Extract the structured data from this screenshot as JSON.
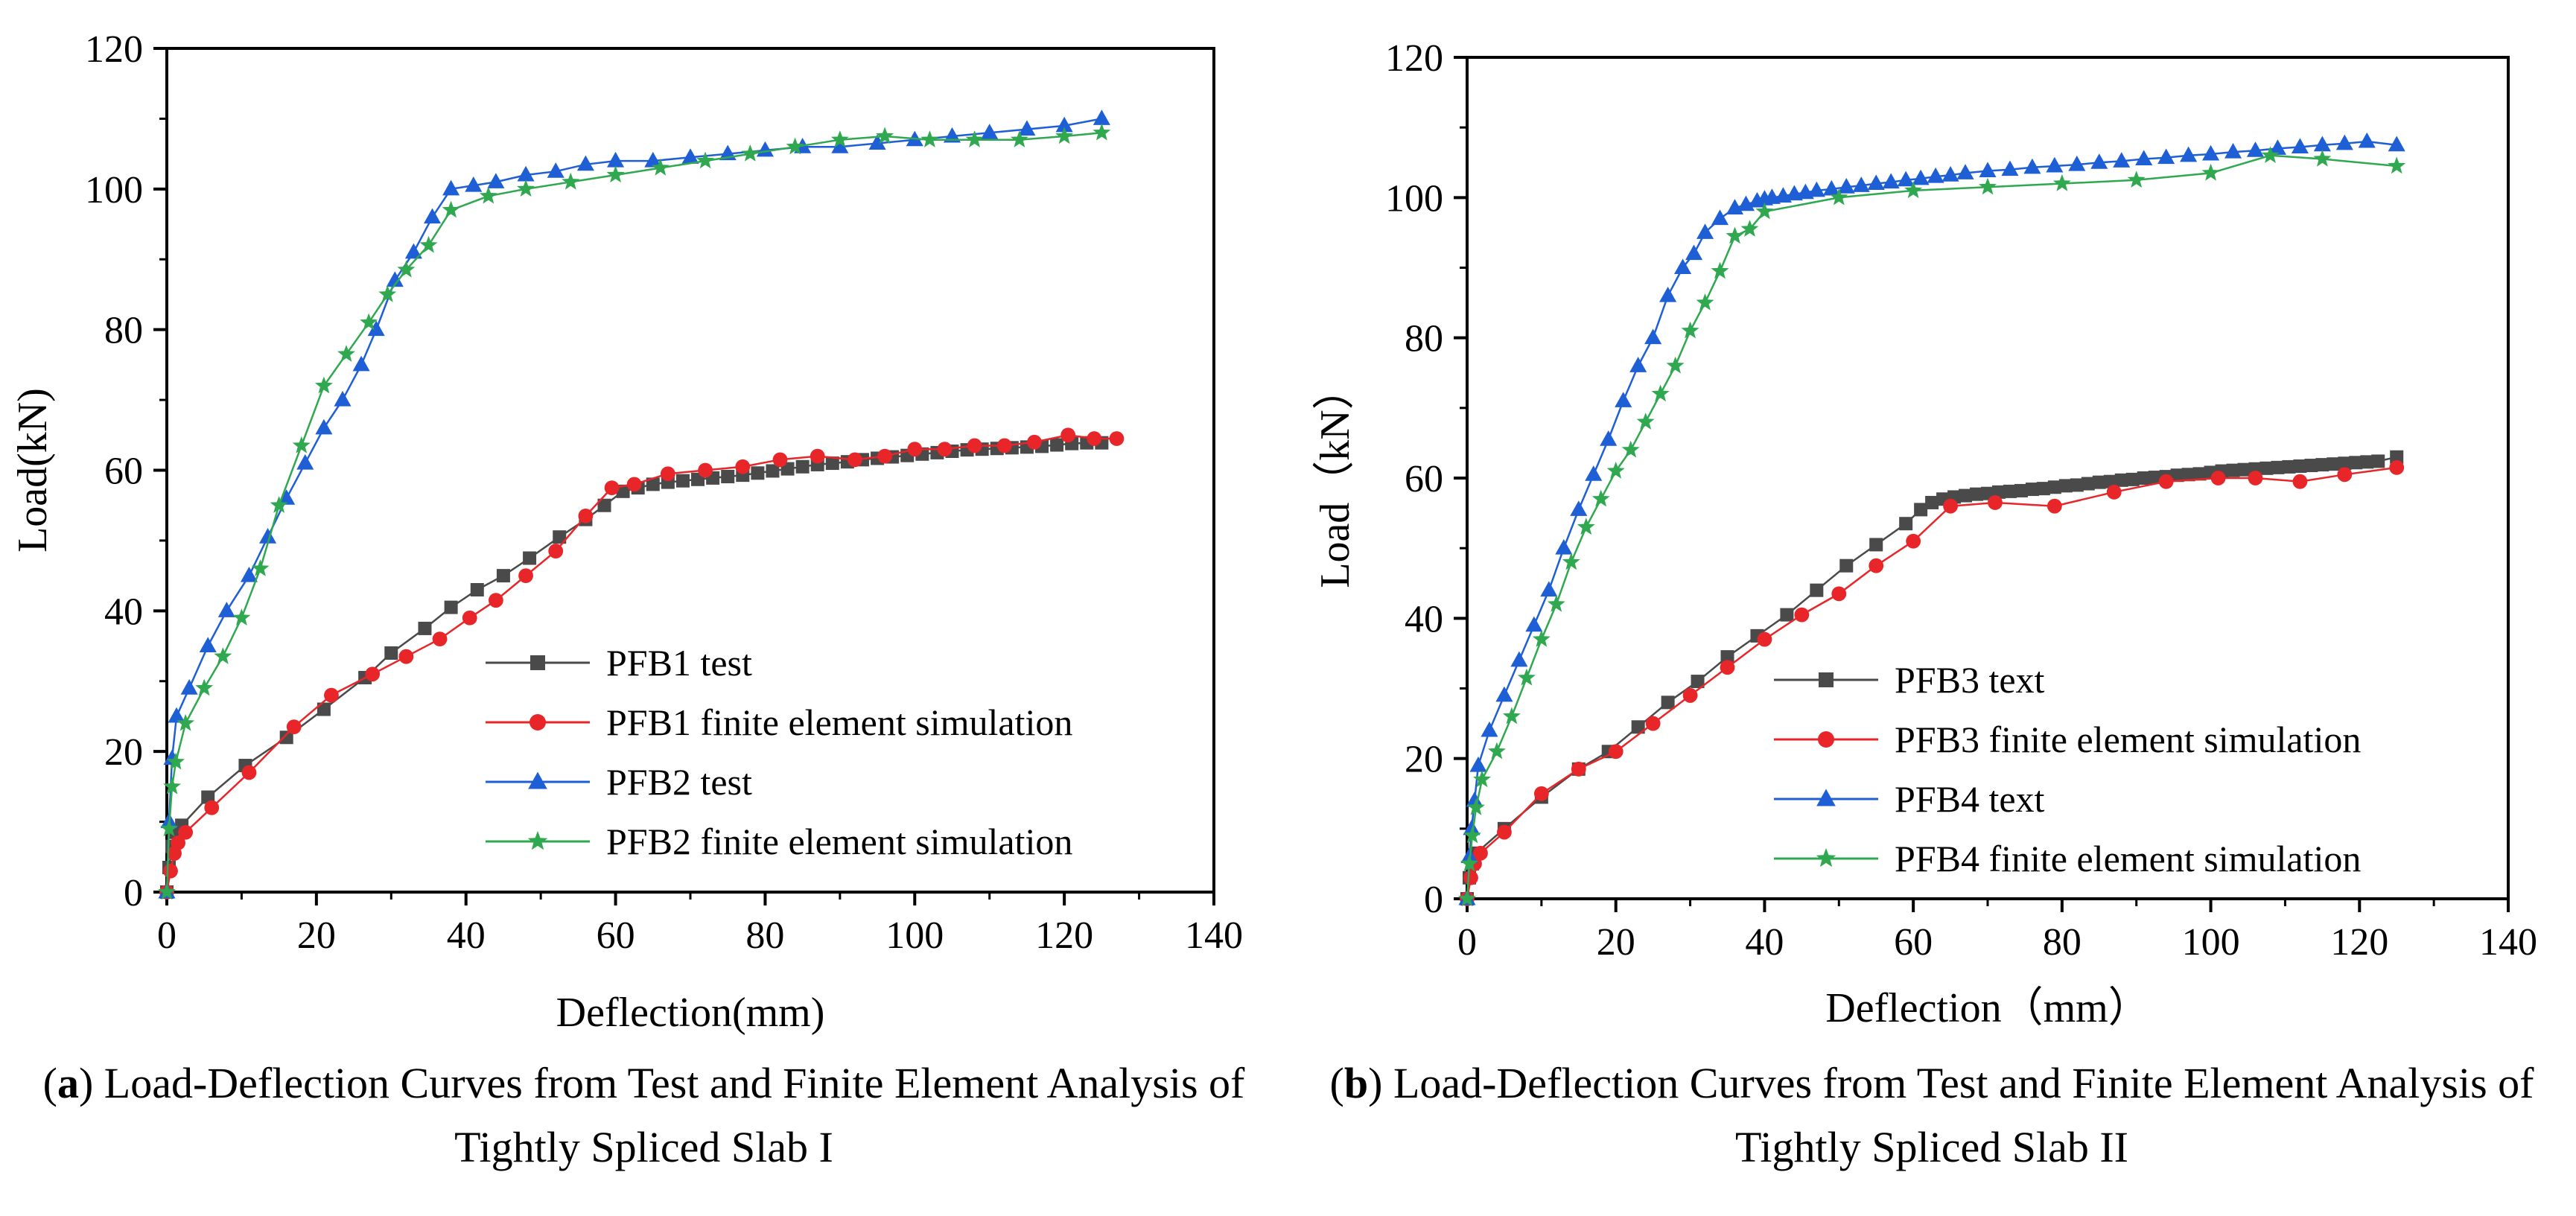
{
  "chart_data": [
    {
      "type": "line",
      "xlabel": "Deflection(mm)",
      "ylabel": "Load(kN)",
      "xlim": [
        0,
        140
      ],
      "ylim": [
        0,
        120
      ],
      "xticks": [
        0,
        20,
        40,
        60,
        80,
        100,
        120,
        140
      ],
      "yticks": [
        0,
        20,
        40,
        60,
        80,
        100,
        120
      ],
      "legend_position": "lower-right",
      "caption_label": "a",
      "caption_text": "Load-Deflection Curves from Test and Finite Element Analysis of Tightly Spliced Slab I",
      "series": [
        {
          "name": "PFB1 test",
          "color": "#4a4a4a",
          "marker": "square",
          "x": [
            0,
            0.3,
            0.7,
            1.2,
            2,
            5.5,
            10.5,
            16,
            21,
            26.5,
            30,
            34.5,
            38,
            41.5,
            45,
            48.5,
            52.5,
            56,
            58.5,
            61,
            63,
            65,
            67,
            69,
            71,
            73,
            75,
            77,
            79,
            81,
            83,
            85,
            87,
            89,
            91,
            93,
            95,
            97,
            99,
            101,
            103,
            105,
            107,
            109,
            111,
            113,
            115,
            117,
            119,
            121,
            123,
            125
          ],
          "y": [
            0,
            3.5,
            6.5,
            8.5,
            9.5,
            13.5,
            18,
            22,
            26,
            30.5,
            34,
            37.5,
            40.5,
            43,
            45,
            47.5,
            50.5,
            53,
            55,
            57,
            57.5,
            58,
            58.3,
            58.5,
            58.7,
            58.9,
            59.1,
            59.3,
            59.6,
            59.9,
            60.2,
            60.5,
            60.8,
            61,
            61.2,
            61.5,
            61.7,
            61.9,
            62.1,
            62.3,
            62.5,
            62.7,
            62.9,
            63,
            63.1,
            63.2,
            63.3,
            63.4,
            63.6,
            63.8,
            63.9,
            63.9
          ]
        },
        {
          "name": "PFB1 finite element simulation",
          "color": "#e8262a",
          "marker": "circle",
          "x": [
            0,
            0.5,
            1,
            1.5,
            2.5,
            6,
            11,
            17,
            22,
            27.5,
            32,
            36.5,
            40.5,
            44,
            48,
            52,
            56,
            59.5,
            62.5,
            67,
            72,
            77,
            82,
            87,
            92,
            96,
            100,
            104,
            108,
            112,
            116,
            120.5,
            124,
            127
          ],
          "y": [
            0,
            3,
            5.5,
            7,
            8.5,
            12,
            17,
            23.5,
            28,
            31,
            33.5,
            36,
            39,
            41.5,
            45,
            48.5,
            53.5,
            57.5,
            58,
            59.5,
            60,
            60.5,
            61.5,
            62,
            61.5,
            62,
            63,
            63,
            63.5,
            63.5,
            64,
            65,
            64.5,
            64.5
          ]
        },
        {
          "name": "PFB2 test",
          "color": "#1f5fd6",
          "marker": "triangle",
          "x": [
            0,
            0.3,
            0.7,
            1.3,
            3,
            5.5,
            8,
            11,
            13.5,
            16,
            18.5,
            21,
            23.5,
            26,
            28,
            30.5,
            33,
            35.5,
            38,
            41,
            44,
            48,
            52,
            56,
            60,
            65,
            70,
            75,
            80,
            85,
            90,
            95,
            100,
            105,
            110,
            115,
            120,
            125
          ],
          "y": [
            0,
            10,
            19,
            25,
            29,
            35,
            40,
            45,
            50.5,
            56,
            61,
            66,
            70,
            75,
            80,
            87,
            91,
            96,
            100,
            100.5,
            101,
            102,
            102.5,
            103.5,
            104,
            104,
            104.5,
            105,
            105.5,
            106,
            106,
            106.5,
            107,
            107.5,
            108,
            108.5,
            109,
            110
          ]
        },
        {
          "name": "PFB2 finite element simulation",
          "color": "#2fa84f",
          "marker": "star",
          "x": [
            0,
            0.3,
            0.7,
            1.2,
            2.5,
            5,
            7.5,
            10,
            12.5,
            15,
            18,
            21,
            24,
            27,
            29.5,
            32,
            35,
            38,
            43,
            48,
            54,
            60,
            66,
            72,
            78,
            84,
            90,
            96,
            102,
            108,
            114,
            120,
            125
          ],
          "y": [
            0,
            9,
            15,
            18.5,
            24,
            29,
            33.5,
            39,
            46,
            55,
            63.5,
            72,
            76.5,
            81,
            85,
            88.5,
            92,
            97,
            99,
            100,
            101,
            102,
            103,
            104,
            105,
            106,
            107,
            107.5,
            107,
            107,
            107,
            107.5,
            108
          ]
        }
      ]
    },
    {
      "type": "line",
      "xlabel": "Deflection（mm）",
      "ylabel": "Load（kN）",
      "xlim": [
        0,
        140
      ],
      "ylim": [
        0,
        120
      ],
      "xticks": [
        0,
        20,
        40,
        60,
        80,
        100,
        120,
        140
      ],
      "yticks": [
        0,
        20,
        40,
        60,
        80,
        100,
        120
      ],
      "legend_position": "lower-right",
      "caption_label": "b",
      "caption_text": "Load-Deflection Curves from Test and Finite Element Analysis of Tightly Spliced Slab II",
      "series": [
        {
          "name": "PFB3 text",
          "color": "#4a4a4a",
          "marker": "square",
          "x": [
            0,
            0.3,
            0.7,
            1.2,
            5,
            10,
            15,
            19,
            23,
            27,
            31,
            35,
            39,
            43,
            47,
            51,
            55,
            59,
            61,
            62.5,
            64,
            65.5,
            67,
            68.5,
            70,
            71.5,
            73,
            74.5,
            76,
            77.5,
            79,
            80.5,
            82,
            83.5,
            85,
            86.5,
            88,
            89.5,
            91,
            92.5,
            94,
            95.5,
            97,
            98.5,
            100,
            101.5,
            103,
            104.5,
            106,
            107.5,
            109,
            110.5,
            112,
            113.5,
            115,
            116.5,
            118,
            119.5,
            121,
            122.5,
            125
          ],
          "y": [
            0,
            3,
            5,
            6.5,
            10,
            14.5,
            18.5,
            21,
            24.5,
            28,
            31,
            34.5,
            37.5,
            40.5,
            44,
            47.5,
            50.5,
            53.5,
            55.5,
            56.5,
            57,
            57.3,
            57.5,
            57.7,
            57.8,
            58,
            58.1,
            58.2,
            58.4,
            58.5,
            58.7,
            58.9,
            59,
            59.2,
            59.4,
            59.5,
            59.7,
            59.8,
            60,
            60.1,
            60.2,
            60.4,
            60.5,
            60.6,
            60.8,
            61,
            61.1,
            61.2,
            61.3,
            61.4,
            61.5,
            61.6,
            61.7,
            61.8,
            61.9,
            62,
            62.1,
            62.2,
            62.3,
            62.4,
            63
          ]
        },
        {
          "name": "PFB3 finite element simulation",
          "color": "#e8262a",
          "marker": "circle",
          "x": [
            0,
            0.5,
            1,
            1.8,
            5,
            10,
            15,
            20,
            25,
            30,
            35,
            40,
            45,
            50,
            55,
            60,
            65,
            71,
            79,
            87,
            94,
            101,
            106,
            112,
            118,
            125
          ],
          "y": [
            0,
            3,
            5,
            6.5,
            9.5,
            15,
            18.5,
            21,
            25,
            29,
            33,
            37,
            40.5,
            43.5,
            47.5,
            51,
            56,
            56.5,
            56,
            58,
            59.5,
            60,
            60,
            59.5,
            60.5,
            61.5
          ]
        },
        {
          "name": "PFB4 text",
          "color": "#1f5fd6",
          "marker": "triangle",
          "x": [
            0,
            0.3,
            0.6,
            1,
            1.5,
            3,
            5,
            7,
            9,
            11,
            13,
            15,
            17,
            19,
            21,
            23,
            25,
            27,
            29,
            30.5,
            32,
            34,
            36,
            37.5,
            39,
            40,
            41,
            42.5,
            44,
            45.5,
            47,
            49,
            51,
            53,
            55,
            57,
            59,
            61,
            63,
            65,
            67,
            70,
            73,
            76,
            79,
            82,
            85,
            88,
            91,
            94,
            97,
            100,
            103,
            106,
            109,
            112,
            115,
            118,
            121,
            125
          ],
          "y": [
            0,
            6,
            10,
            14,
            19,
            24,
            29,
            34,
            39,
            44,
            50,
            55.5,
            60.5,
            65.5,
            71,
            76,
            80,
            86,
            90,
            92,
            95,
            97,
            98.5,
            99,
            99.5,
            99.8,
            100,
            100.2,
            100.5,
            100.7,
            101,
            101.2,
            101.5,
            101.7,
            102,
            102.2,
            102.5,
            102.7,
            103,
            103.2,
            103.5,
            103.8,
            104,
            104.3,
            104.5,
            104.7,
            105,
            105.2,
            105.5,
            105.7,
            106,
            106.2,
            106.5,
            106.7,
            107,
            107.2,
            107.5,
            107.7,
            108,
            107.5
          ]
        },
        {
          "name": "PFB4 finite element simulation",
          "color": "#2fa84f",
          "marker": "star",
          "x": [
            0,
            0.3,
            0.7,
            1.2,
            2,
            4,
            6,
            8,
            10,
            12,
            14,
            16,
            18,
            20,
            22,
            24,
            26,
            28,
            30,
            32,
            34,
            36,
            38,
            40,
            50,
            60,
            70,
            80,
            90,
            100,
            108,
            115,
            125
          ],
          "y": [
            0,
            5,
            9,
            13,
            17,
            21,
            26,
            31.5,
            37,
            42,
            48,
            53,
            57,
            61,
            64,
            68,
            72,
            76,
            81,
            85,
            89.5,
            94.5,
            95.5,
            98,
            100,
            101,
            101.5,
            102,
            102.5,
            103.5,
            106,
            105.5,
            104.5
          ]
        }
      ]
    }
  ]
}
